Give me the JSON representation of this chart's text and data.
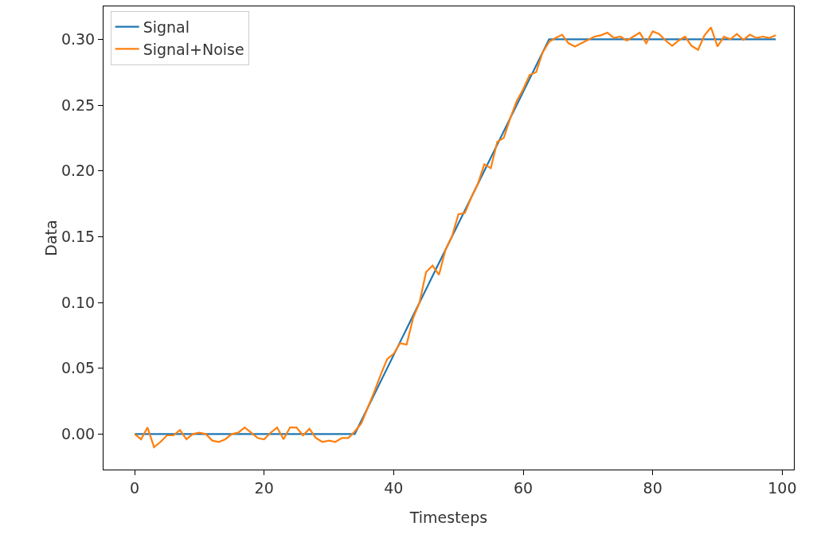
{
  "chart_data": {
    "type": "line",
    "xlabel": "Timesteps",
    "ylabel": "Data",
    "xlim": [
      -4.8,
      101.8
    ],
    "xticks": [
      0,
      20,
      40,
      60,
      80,
      100
    ],
    "ylim": [
      -0.027,
      0.325
    ],
    "yticks": [
      {
        "value": 0,
        "label": "0.00"
      },
      {
        "value": 0.05,
        "label": "0.05"
      },
      {
        "value": 0.1,
        "label": "0.10"
      },
      {
        "value": 0.15,
        "label": "0.15"
      },
      {
        "value": 0.2,
        "label": "0.20"
      },
      {
        "value": 0.25,
        "label": "0.25"
      },
      {
        "value": 0.3,
        "label": "0.30"
      }
    ],
    "grid": false,
    "legend": "top left",
    "marker": "none",
    "line_style": "solid",
    "series": [
      {
        "name": "Signal",
        "color": "#1f77b4",
        "x": [
          0,
          34,
          64,
          99
        ],
        "values": [
          0,
          0,
          0.3,
          0.3
        ]
      },
      {
        "name": "Signal+Noise",
        "color": "#ff7f0e",
        "x": [
          0,
          1,
          2,
          3,
          4,
          5,
          6,
          7,
          8,
          9,
          10,
          11,
          12,
          13,
          14,
          15,
          16,
          17,
          18,
          19,
          20,
          21,
          22,
          23,
          24,
          25,
          26,
          27,
          28,
          29,
          30,
          31,
          32,
          33,
          34,
          35,
          36,
          37,
          38,
          39,
          40,
          41,
          42,
          43,
          44,
          45,
          46,
          47,
          48,
          49,
          50,
          51,
          52,
          53,
          54,
          55,
          56,
          57,
          58,
          59,
          60,
          61,
          62,
          63,
          64,
          65,
          66,
          67,
          68,
          69,
          70,
          71,
          72,
          73,
          74,
          75,
          76,
          77,
          78,
          79,
          80,
          81,
          82,
          83,
          84,
          85,
          86,
          87,
          88,
          89,
          90,
          91,
          92,
          93,
          94,
          95,
          96,
          97,
          98,
          99
        ],
        "values": [
          0,
          -0.004,
          0.005,
          -0.01,
          -0.006,
          -0.001,
          -0.001,
          0.003,
          -0.004,
          0,
          0.001,
          0,
          -0.005,
          -0.006,
          -0.004,
          0,
          0.001,
          0.005,
          0.001,
          -0.003,
          -0.004,
          0.001,
          0.005,
          -0.004,
          0.005,
          0.005,
          -0.001,
          0.004,
          -0.003,
          -0.006,
          -0.005,
          -0.006,
          -0.003,
          -0.003,
          0.002,
          0.008,
          0.02,
          0.032,
          0.045,
          0.057,
          0.061,
          0.069,
          0.068,
          0.088,
          0.1,
          0.123,
          0.128,
          0.121,
          0.14,
          0.15,
          0.167,
          0.168,
          0.18,
          0.19,
          0.205,
          0.202,
          0.222,
          0.225,
          0.24,
          0.253,
          0.262,
          0.273,
          0.275,
          0.29,
          0.298,
          0.301,
          0.3035,
          0.297,
          0.2945,
          0.297,
          0.2995,
          0.302,
          0.303,
          0.305,
          0.301,
          0.302,
          0.299,
          0.302,
          0.305,
          0.297,
          0.306,
          0.304,
          0.299,
          0.295,
          0.299,
          0.302,
          0.295,
          0.292,
          0.303,
          0.309,
          0.2945,
          0.302,
          0.3,
          0.304,
          0.2995,
          0.3035,
          0.301,
          0.302,
          0.301,
          0.303
        ]
      }
    ]
  }
}
